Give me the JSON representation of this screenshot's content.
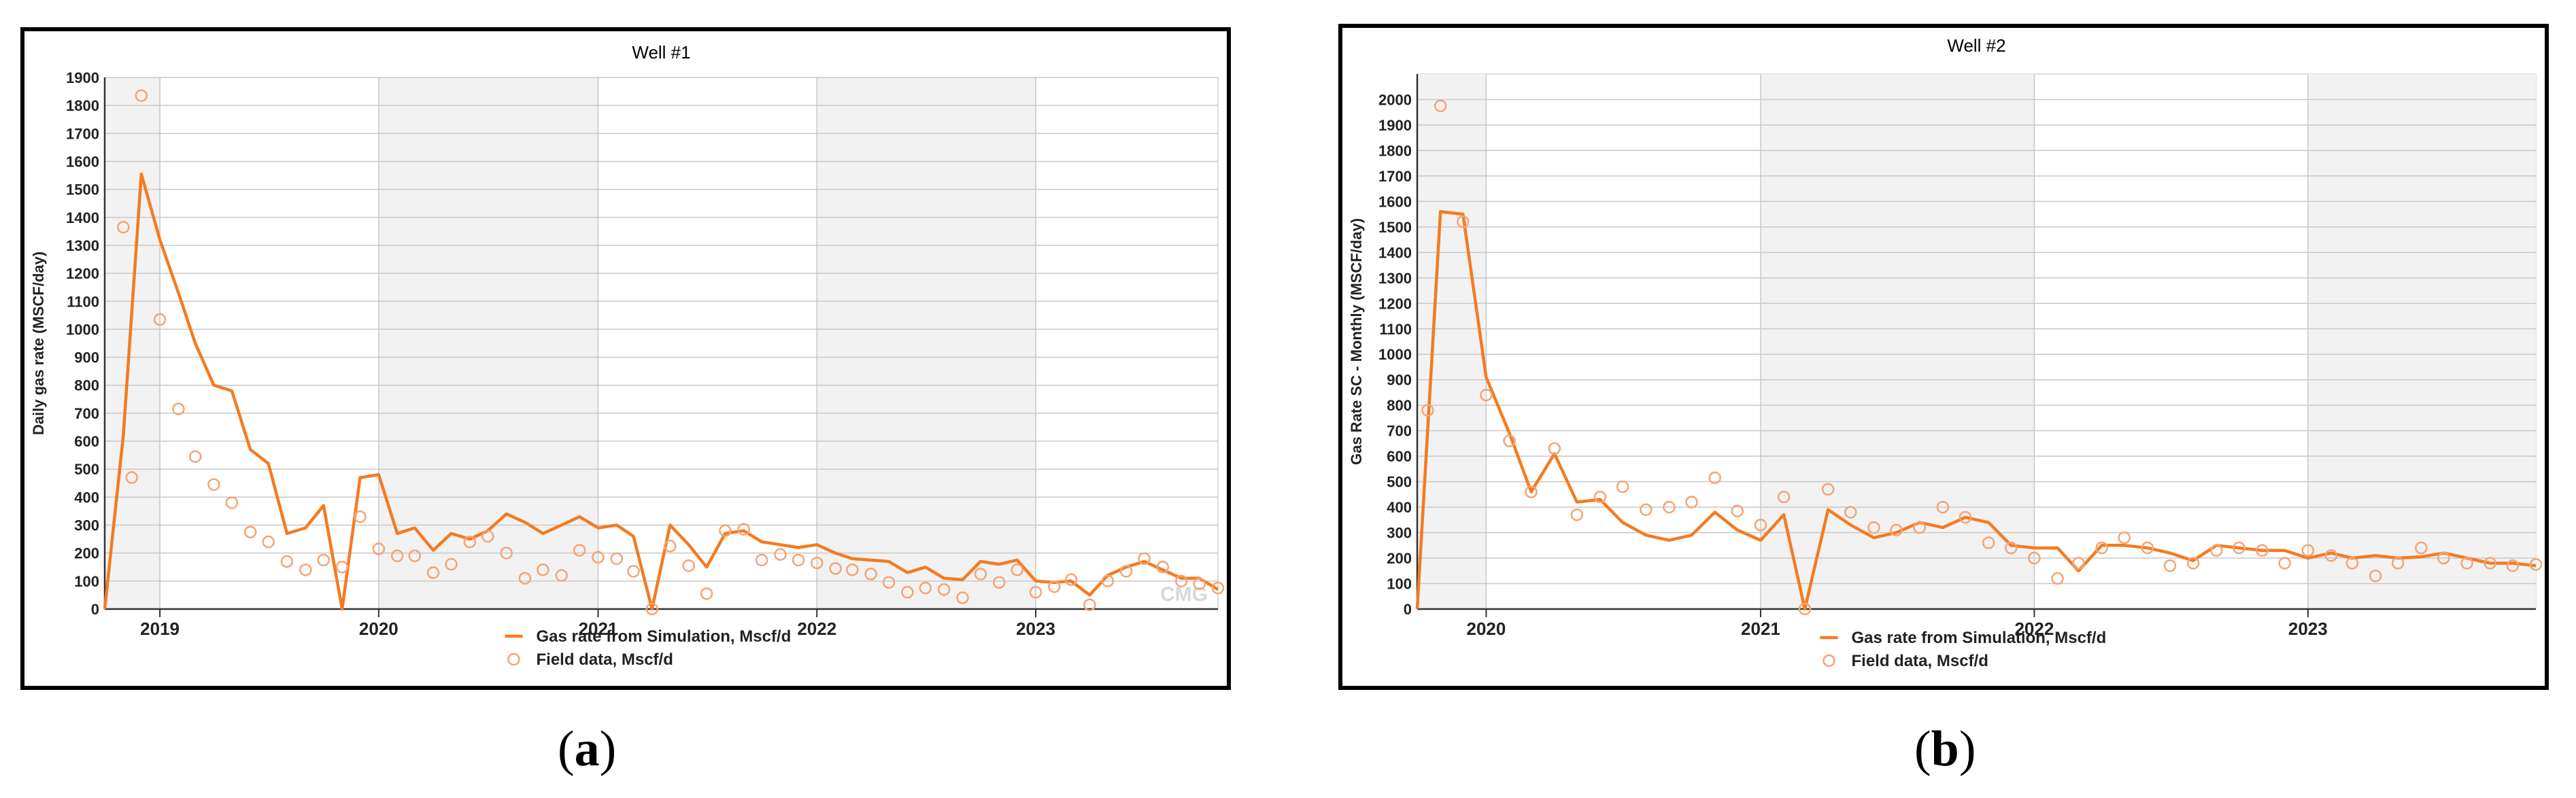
{
  "colors": {
    "accent": "#f47b20",
    "field": "#f4a477",
    "band": "#f2f2f2",
    "grid": "#c8c8c8",
    "axis": "#333333"
  },
  "captions": [
    "a",
    "b"
  ],
  "chart_data": [
    {
      "type": "line",
      "title": "Well #1",
      "ylabel": "Daily gas rate (MSCF/day)",
      "xlabel": "",
      "xlim": [
        "2018-10-01",
        "2023-11-01"
      ],
      "ylim": [
        0,
        1900
      ],
      "yticks": [
        0,
        100,
        200,
        300,
        400,
        500,
        600,
        700,
        800,
        900,
        1000,
        1100,
        1200,
        1300,
        1400,
        1500,
        1600,
        1700,
        1800,
        1900
      ],
      "xticks": [
        "2019",
        "2020",
        "2021",
        "2022",
        "2023"
      ],
      "series": [
        {
          "name": "Gas rate from Simulation, Mscf/d",
          "type": "line",
          "x": [
            "2018-10-01",
            "2018-11-01",
            "2018-12-01",
            "2019-01-01",
            "2019-02-01",
            "2019-03-01",
            "2019-04-01",
            "2019-05-01",
            "2019-06-01",
            "2019-07-01",
            "2019-08-01",
            "2019-09-01",
            "2019-10-01",
            "2019-11-01",
            "2019-12-01",
            "2020-01-01",
            "2020-02-01",
            "2020-03-01",
            "2020-04-01",
            "2020-05-01",
            "2020-06-01",
            "2020-07-01",
            "2020-08-01",
            "2020-09-01",
            "2020-10-01",
            "2020-11-01",
            "2020-12-01",
            "2021-01-01",
            "2021-02-01",
            "2021-03-01",
            "2021-04-01",
            "2021-05-01",
            "2021-06-01",
            "2021-07-01",
            "2021-08-01",
            "2021-09-01",
            "2021-10-01",
            "2021-11-01",
            "2021-12-01",
            "2022-01-01",
            "2022-02-01",
            "2022-03-01",
            "2022-04-01",
            "2022-05-01",
            "2022-06-01",
            "2022-07-01",
            "2022-08-01",
            "2022-09-01",
            "2022-10-01",
            "2022-11-01",
            "2022-12-01",
            "2023-01-01",
            "2023-02-01",
            "2023-03-01",
            "2023-04-01",
            "2023-05-01",
            "2023-06-01",
            "2023-07-01",
            "2023-08-01",
            "2023-09-01",
            "2023-10-01",
            "2023-11-01"
          ],
          "y": [
            0,
            620,
            1555,
            1320,
            1130,
            950,
            800,
            780,
            570,
            520,
            270,
            290,
            370,
            0,
            470,
            480,
            270,
            290,
            210,
            270,
            250,
            280,
            340,
            310,
            270,
            300,
            330,
            290,
            300,
            260,
            0,
            300,
            230,
            150,
            270,
            280,
            240,
            230,
            220,
            230,
            200,
            180,
            175,
            170,
            130,
            150,
            110,
            105,
            170,
            160,
            175,
            100,
            95,
            100,
            50,
            120,
            150,
            170,
            140,
            110,
            110,
            70
          ]
        },
        {
          "name": "Field data, Mscf/d",
          "type": "scatter",
          "x": [
            "2018-11-01",
            "2018-12-01",
            "2018-11-15",
            "2019-01-01",
            "2019-02-01",
            "2019-03-01",
            "2019-04-01",
            "2019-05-01",
            "2019-06-01",
            "2019-07-01",
            "2019-08-01",
            "2019-09-01",
            "2019-10-01",
            "2019-11-01",
            "2019-12-01",
            "2020-01-01",
            "2020-02-01",
            "2020-03-01",
            "2020-04-01",
            "2020-05-01",
            "2020-06-01",
            "2020-07-01",
            "2020-08-01",
            "2020-09-01",
            "2020-10-01",
            "2020-11-01",
            "2020-12-01",
            "2021-01-01",
            "2021-02-01",
            "2021-03-01",
            "2021-04-01",
            "2021-05-01",
            "2021-06-01",
            "2021-07-01",
            "2021-08-01",
            "2021-09-01",
            "2021-10-01",
            "2021-11-01",
            "2021-12-01",
            "2022-01-01",
            "2022-02-01",
            "2022-03-01",
            "2022-04-01",
            "2022-05-01",
            "2022-06-01",
            "2022-07-01",
            "2022-08-01",
            "2022-09-01",
            "2022-10-01",
            "2022-11-01",
            "2022-12-01",
            "2023-01-01",
            "2023-02-01",
            "2023-03-01",
            "2023-04-01",
            "2023-05-01",
            "2023-06-01",
            "2023-07-01",
            "2023-08-01",
            "2023-09-01",
            "2023-10-01",
            "2023-11-01"
          ],
          "y": [
            1365,
            1835,
            470,
            1035,
            715,
            545,
            445,
            380,
            275,
            240,
            170,
            140,
            175,
            150,
            330,
            215,
            190,
            190,
            130,
            160,
            240,
            260,
            200,
            110,
            140,
            120,
            210,
            185,
            180,
            135,
            0,
            225,
            155,
            55,
            280,
            285,
            175,
            195,
            175,
            165,
            145,
            140,
            125,
            95,
            60,
            75,
            70,
            40,
            125,
            95,
            140,
            60,
            80,
            105,
            15,
            100,
            135,
            180,
            150,
            100,
            90,
            75
          ]
        }
      ],
      "legend_position": "bottom",
      "watermark": "CMG"
    },
    {
      "type": "line",
      "title": "Well #2",
      "ylabel": "Gas Rate SC - Monthly (MSCF/day)",
      "xlabel": "",
      "xlim": [
        "2019-10-01",
        "2023-11-01"
      ],
      "ylim": [
        0,
        2100
      ],
      "yticks": [
        0,
        100,
        200,
        300,
        400,
        500,
        600,
        700,
        800,
        900,
        1000,
        1100,
        1200,
        1300,
        1400,
        1500,
        1600,
        1700,
        1800,
        1900,
        2000
      ],
      "xticks": [
        "2020",
        "2021",
        "2022",
        "2023"
      ],
      "series": [
        {
          "name": "Gas rate from Simulation, Mscf/d",
          "type": "line",
          "x": [
            "2019-10-01",
            "2019-11-01",
            "2019-12-01",
            "2020-01-01",
            "2020-02-01",
            "2020-03-01",
            "2020-04-01",
            "2020-05-01",
            "2020-06-01",
            "2020-07-01",
            "2020-08-01",
            "2020-09-01",
            "2020-10-01",
            "2020-11-01",
            "2020-12-01",
            "2021-01-01",
            "2021-02-01",
            "2021-03-01",
            "2021-04-01",
            "2021-05-01",
            "2021-06-01",
            "2021-07-01",
            "2021-08-01",
            "2021-09-01",
            "2021-10-01",
            "2021-11-01",
            "2021-12-01",
            "2022-01-01",
            "2022-02-01",
            "2022-03-01",
            "2022-04-01",
            "2022-05-01",
            "2022-06-01",
            "2022-07-01",
            "2022-08-01",
            "2022-09-01",
            "2022-10-01",
            "2022-11-01",
            "2022-12-01",
            "2023-01-01",
            "2023-02-01",
            "2023-03-01",
            "2023-04-01",
            "2023-05-01",
            "2023-06-01",
            "2023-07-01",
            "2023-08-01",
            "2023-09-01",
            "2023-10-01",
            "2023-11-01"
          ],
          "y": [
            0,
            1560,
            1550,
            910,
            690,
            460,
            610,
            420,
            430,
            340,
            290,
            270,
            290,
            380,
            310,
            270,
            370,
            0,
            390,
            330,
            280,
            300,
            340,
            320,
            360,
            340,
            250,
            240,
            240,
            150,
            250,
            250,
            240,
            220,
            190,
            250,
            240,
            230,
            230,
            200,
            220,
            200,
            210,
            200,
            205,
            220,
            200,
            180,
            180,
            170
          ]
        },
        {
          "name": "Field data, Mscf/d",
          "type": "scatter",
          "x": [
            "2019-10-15",
            "2019-11-01",
            "2019-12-01",
            "2020-01-01",
            "2020-02-01",
            "2020-03-01",
            "2020-04-01",
            "2020-05-01",
            "2020-06-01",
            "2020-07-01",
            "2020-08-01",
            "2020-09-01",
            "2020-10-01",
            "2020-11-01",
            "2020-12-01",
            "2021-01-01",
            "2021-02-01",
            "2021-03-01",
            "2021-04-01",
            "2021-05-01",
            "2021-06-01",
            "2021-07-01",
            "2021-08-01",
            "2021-09-01",
            "2021-10-01",
            "2021-11-01",
            "2021-12-01",
            "2022-01-01",
            "2022-02-01",
            "2022-03-01",
            "2022-04-01",
            "2022-05-01",
            "2022-06-01",
            "2022-07-01",
            "2022-08-01",
            "2022-09-01",
            "2022-10-01",
            "2022-11-01",
            "2022-12-01",
            "2023-01-01",
            "2023-02-01",
            "2023-03-01",
            "2023-04-01",
            "2023-05-01",
            "2023-06-01",
            "2023-07-01",
            "2023-08-01",
            "2023-09-01",
            "2023-10-01",
            "2023-11-01"
          ],
          "y": [
            780,
            1975,
            1520,
            840,
            660,
            460,
            630,
            370,
            440,
            480,
            390,
            400,
            420,
            515,
            385,
            330,
            440,
            0,
            470,
            380,
            320,
            310,
            320,
            400,
            360,
            260,
            240,
            200,
            120,
            180,
            240,
            280,
            240,
            170,
            180,
            230,
            240,
            230,
            180,
            230,
            210,
            180,
            130,
            180,
            240,
            200,
            180,
            180,
            170,
            175
          ]
        }
      ],
      "legend_position": "bottom"
    }
  ]
}
